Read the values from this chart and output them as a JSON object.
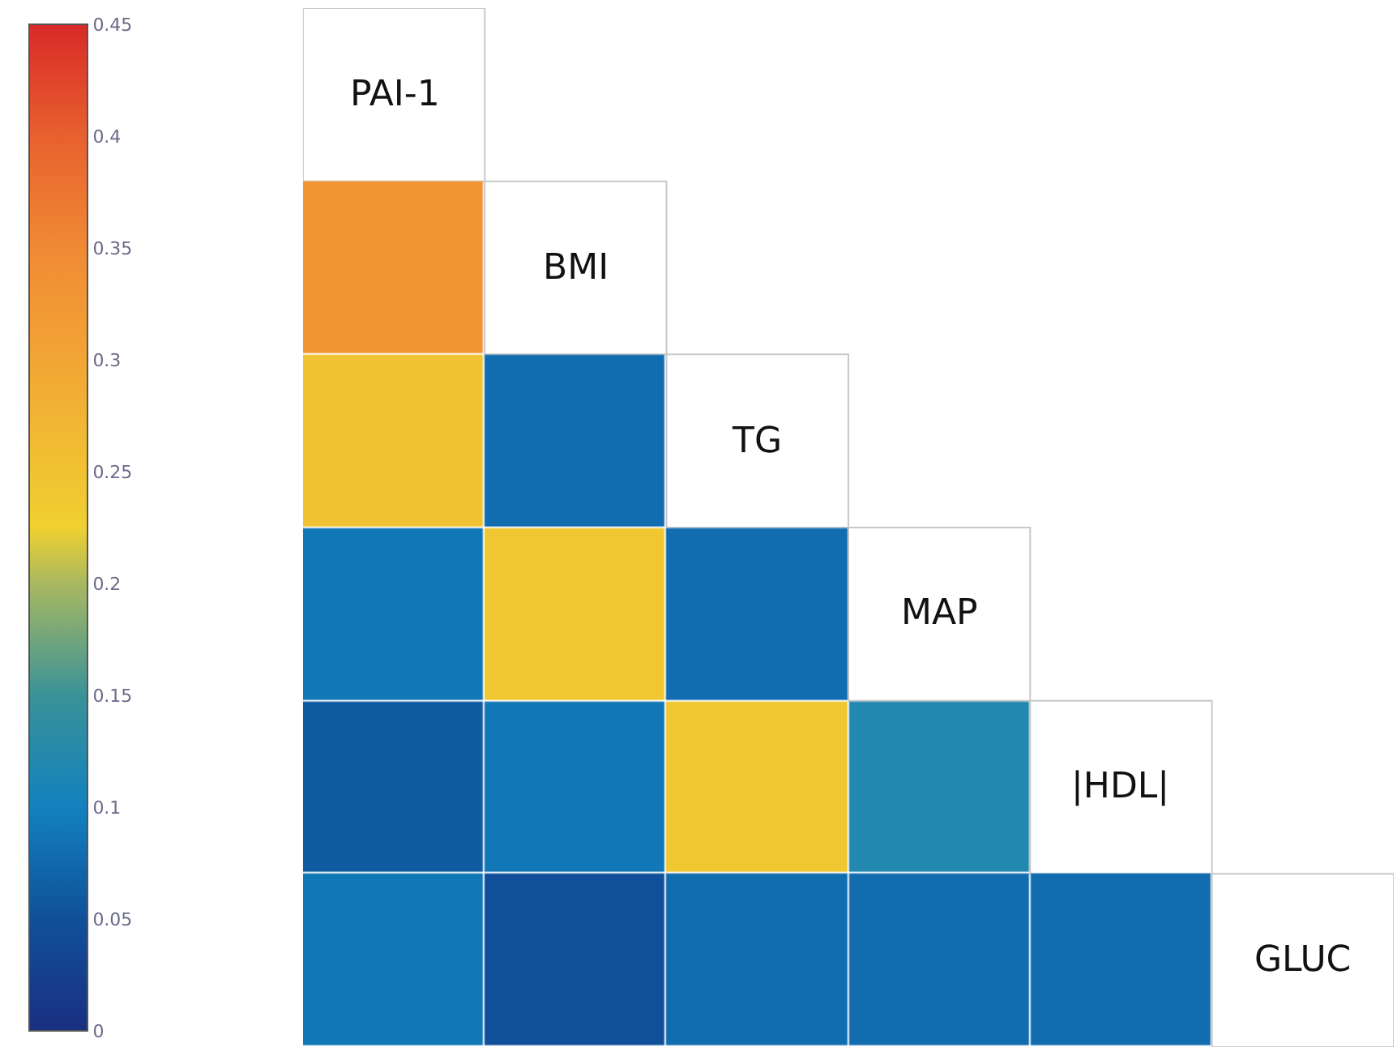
{
  "chart_data": {
    "type": "heatmap",
    "categories": [
      "PAI-1",
      "BMI",
      "TG",
      "MAP",
      "|HDL|"
    ],
    "y_categories": [
      null,
      null,
      null,
      null,
      "GLUC"
    ],
    "cells": [
      [
        0.33,
        null,
        null,
        null,
        null
      ],
      [
        0.25,
        0.08,
        null,
        null,
        null
      ],
      [
        0.09,
        0.24,
        0.08,
        null,
        null
      ],
      [
        0.06,
        0.09,
        0.24,
        0.12,
        null
      ],
      [
        0.09,
        0.05,
        0.08,
        0.08,
        0.08
      ]
    ],
    "clim": [
      0,
      0.45
    ],
    "cticks": [
      0,
      0.05,
      0.1,
      0.15,
      0.2,
      0.25,
      0.3,
      0.35,
      0.4,
      0.45
    ],
    "tick_labels": false,
    "grid": false
  }
}
